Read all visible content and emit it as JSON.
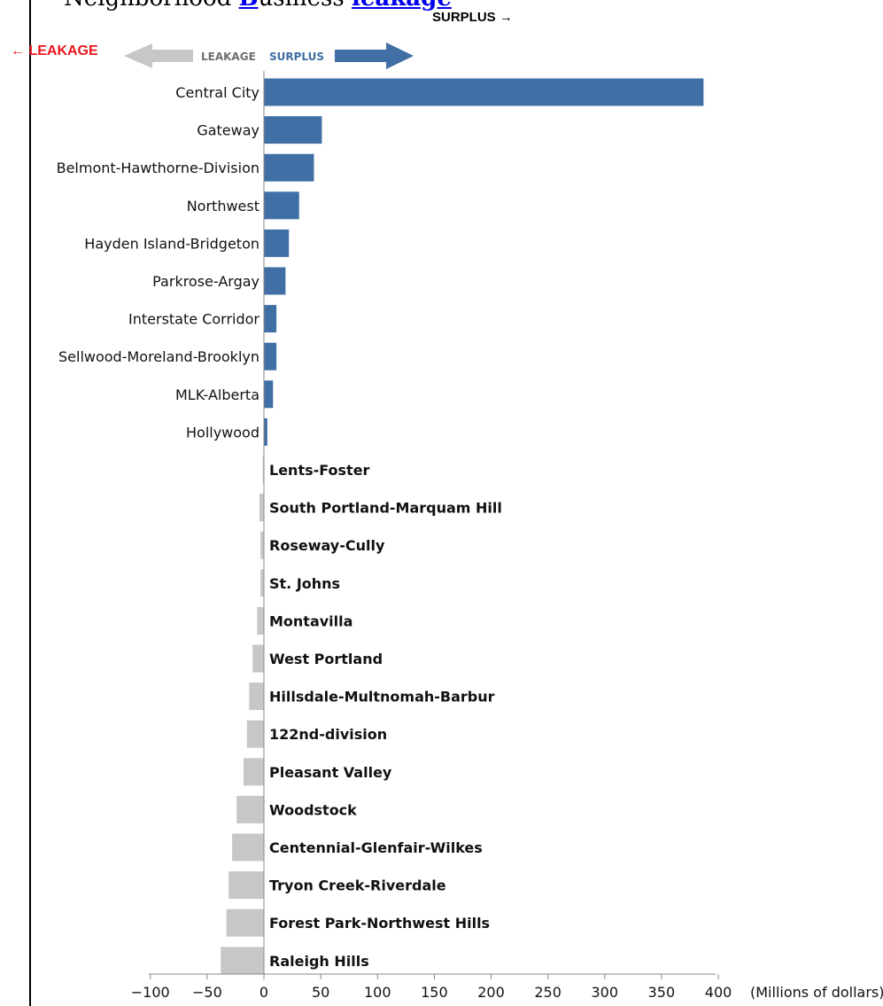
{
  "heading": {
    "part1": "Neighborhood ",
    "link1": "B",
    "part2": "usiness ",
    "link2": "leakage"
  },
  "annotations": {
    "surplus": "SURPLUS →",
    "leakage": "← LEAKAGE"
  },
  "colors": {
    "surplus": "#3f6fa4",
    "leakage": "#c6c7c9",
    "legend_leakage_text": "#6d6e71",
    "annotation_red": "#e8161d"
  },
  "chart_data": {
    "type": "bar",
    "orientation": "horizontal",
    "unit_label": "(Millions of dollars)",
    "legend": {
      "leakage": "LEAKAGE",
      "surplus": "SURPLUS"
    },
    "xlim": [
      -100,
      400
    ],
    "ticks": [
      {
        "v": -100,
        "label": "−100"
      },
      {
        "v": -50,
        "label": "−50"
      },
      {
        "v": 0,
        "label": "0"
      },
      {
        "v": 50,
        "label": "50"
      },
      {
        "v": 100,
        "label": "100"
      },
      {
        "v": 150,
        "label": "150"
      },
      {
        "v": 200,
        "label": "200"
      },
      {
        "v": 250,
        "label": "250"
      },
      {
        "v": 300,
        "label": "300"
      },
      {
        "v": 350,
        "label": "350"
      },
      {
        "v": 400,
        "label": "400"
      }
    ],
    "bars": [
      {
        "name": "Central City",
        "value": 387
      },
      {
        "name": "Gateway",
        "value": 51
      },
      {
        "name": "Belmont-Hawthorne-Division",
        "value": 44
      },
      {
        "name": "Northwest",
        "value": 31
      },
      {
        "name": "Hayden Island-Bridgeton",
        "value": 22
      },
      {
        "name": "Parkrose-Argay",
        "value": 19
      },
      {
        "name": "Interstate Corridor",
        "value": 11
      },
      {
        "name": "Sellwood-Moreland-Brooklyn",
        "value": 11
      },
      {
        "name": "MLK-Alberta",
        "value": 8
      },
      {
        "name": "Hollywood",
        "value": 3
      },
      {
        "name": "Lents-Foster",
        "value": -1
      },
      {
        "name": "South Portland-Marquam Hill",
        "value": -4
      },
      {
        "name": "Roseway-Cully",
        "value": -3
      },
      {
        "name": "St. Johns",
        "value": -3
      },
      {
        "name": "Montavilla",
        "value": -6
      },
      {
        "name": "West Portland",
        "value": -10
      },
      {
        "name": "Hillsdale-Multnomah-Barbur",
        "value": -13
      },
      {
        "name": "122nd-division",
        "value": -15
      },
      {
        "name": "Pleasant Valley",
        "value": -18
      },
      {
        "name": "Woodstock",
        "value": -24
      },
      {
        "name": "Centennial-Glenfair-Wilkes",
        "value": -28
      },
      {
        "name": "Tryon Creek-Riverdale",
        "value": -31
      },
      {
        "name": "Forest Park-Northwest Hills",
        "value": -33
      },
      {
        "name": "Raleigh Hills",
        "value": -38
      }
    ]
  }
}
